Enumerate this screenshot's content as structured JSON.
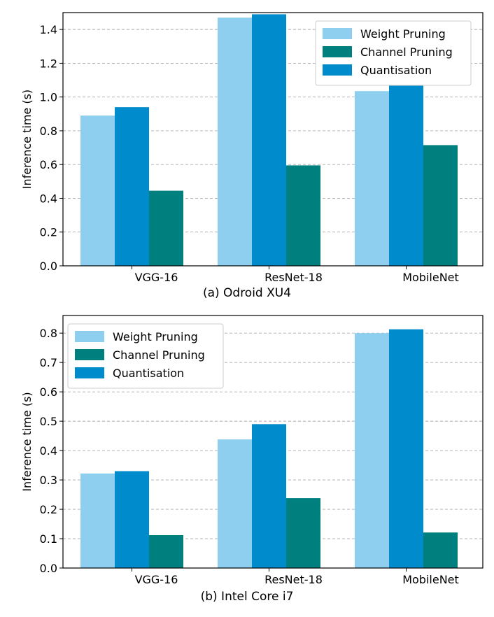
{
  "colors": {
    "weight_pruning": "#8ecfef",
    "channel_pruning": "#007f7f",
    "quantisation": "#008ccc",
    "grid": "#aaaaaa",
    "axis": "#000000"
  },
  "chart_data": [
    {
      "type": "bar",
      "caption": "(a) Odroid XU4",
      "ylabel": "Inference time (s)",
      "categories": [
        "VGG-16",
        "ResNet-18",
        "MobileNet"
      ],
      "ylim": [
        0,
        1.5
      ],
      "yticks": [
        0.0,
        0.2,
        0.4,
        0.6,
        0.8,
        1.0,
        1.2,
        1.4
      ],
      "ytick_labels": [
        "0.0",
        "0.2",
        "0.4",
        "0.6",
        "0.8",
        "1.0",
        "1.2",
        "1.4"
      ],
      "grid": true,
      "legend_position": "top-right",
      "legend": [
        "Weight Pruning",
        "Channel Pruning",
        "Quantisation"
      ],
      "series": [
        {
          "name": "Weight Pruning",
          "key": "weight_pruning",
          "values": [
            0.89,
            1.47,
            1.035
          ]
        },
        {
          "name": "Quantisation",
          "key": "quantisation",
          "values": [
            0.94,
            1.49,
            1.11
          ]
        },
        {
          "name": "Channel Pruning",
          "key": "channel_pruning",
          "values": [
            0.445,
            0.595,
            0.715
          ]
        }
      ]
    },
    {
      "type": "bar",
      "caption": "(b) Intel Core i7",
      "ylabel": "Inference time (s)",
      "categories": [
        "VGG-16",
        "ResNet-18",
        "MobileNet"
      ],
      "ylim": [
        0,
        0.86
      ],
      "yticks": [
        0.0,
        0.1,
        0.2,
        0.3,
        0.4,
        0.5,
        0.6,
        0.7,
        0.8
      ],
      "ytick_labels": [
        "0.0",
        "0.1",
        "0.2",
        "0.3",
        "0.4",
        "0.5",
        "0.6",
        "0.7",
        "0.8"
      ],
      "grid": true,
      "legend_position": "top-left",
      "legend": [
        "Weight Pruning",
        "Channel Pruning",
        "Quantisation"
      ],
      "series": [
        {
          "name": "Weight Pruning",
          "key": "weight_pruning",
          "values": [
            0.322,
            0.438,
            0.8
          ]
        },
        {
          "name": "Quantisation",
          "key": "quantisation",
          "values": [
            0.33,
            0.49,
            0.813
          ]
        },
        {
          "name": "Channel Pruning",
          "key": "channel_pruning",
          "values": [
            0.112,
            0.238,
            0.121
          ]
        }
      ]
    }
  ]
}
